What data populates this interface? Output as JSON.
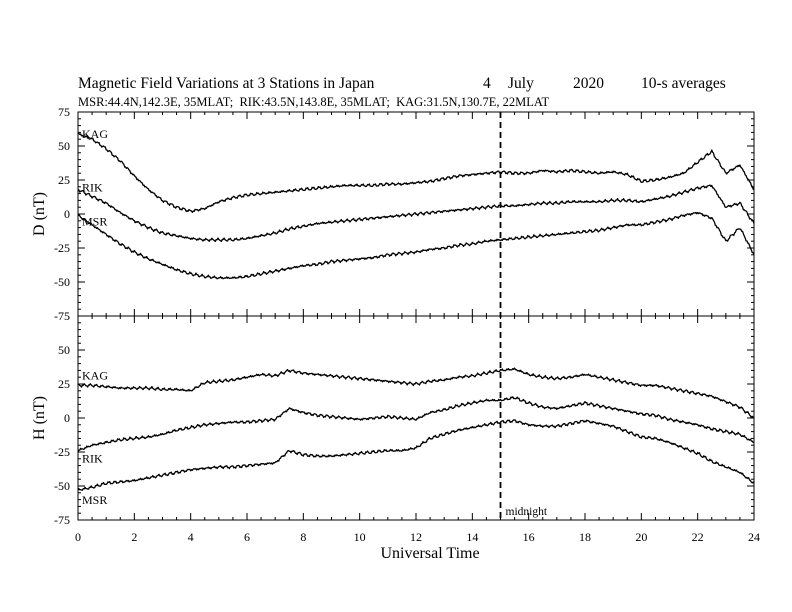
{
  "chart_data": {
    "type": "line",
    "title": "Magnetic Field Variations at 3 Stations in Japan",
    "date_day": "4",
    "date_month": "July",
    "date_year": "2020",
    "averaging": "10-s averages",
    "stations_info": "MSR:44.4N,142.3E, 35MLAT;  RIK:43.5N,143.8E, 35MLAT;  KAG:31.5N,130.7E, 22MLAT",
    "xlabel": "Universal Time",
    "xlim": [
      0,
      24
    ],
    "x_ticks": [
      "0",
      "2",
      "4",
      "6",
      "8",
      "10",
      "12",
      "14",
      "16",
      "18",
      "20",
      "22",
      "24"
    ],
    "midnight_line": {
      "x": 15,
      "label": "midnight"
    },
    "panels": [
      {
        "ylabel": "D (nT)",
        "ylim": [
          -75,
          75
        ],
        "y_ticks": [
          "75",
          "50",
          "25",
          "0",
          "-25",
          "-50",
          "-75"
        ],
        "series": [
          {
            "name": "KAG",
            "x": [
              0,
              0.5,
              1,
              1.5,
              2,
              2.5,
              3,
              3.5,
              4,
              4.5,
              5,
              5.5,
              6,
              6.5,
              7,
              7.5,
              8,
              8.5,
              9,
              9.5,
              10,
              10.5,
              11,
              11.5,
              12,
              12.5,
              13,
              13.5,
              14,
              14.5,
              15,
              15.5,
              16,
              16.5,
              17,
              17.5,
              18,
              18.5,
              19,
              19.5,
              20,
              20.5,
              21,
              21.5,
              22,
              22.5,
              23,
              23.5,
              24
            ],
            "values": [
              59,
              55,
              48,
              39,
              28,
              18,
              10,
              5,
              2,
              4,
              9,
              12,
              14,
              15,
              16,
              17,
              18,
              19,
              20,
              21,
              21,
              21,
              22,
              22,
              23,
              24,
              26,
              28,
              29,
              30,
              31,
              30,
              30,
              32,
              31,
              32,
              31,
              30,
              31,
              29,
              24,
              25,
              27,
              30,
              38,
              46,
              30,
              36,
              18
            ]
          },
          {
            "name": "RIK",
            "x": [
              0,
              0.5,
              1,
              1.5,
              2,
              2.5,
              3,
              3.5,
              4,
              4.5,
              5,
              5.5,
              6,
              6.5,
              7,
              7.5,
              8,
              8.5,
              9,
              9.5,
              10,
              10.5,
              11,
              11.5,
              12,
              12.5,
              13,
              13.5,
              14,
              14.5,
              15,
              15.5,
              16,
              16.5,
              17,
              17.5,
              18,
              18.5,
              19,
              19.5,
              20,
              20.5,
              21,
              21.5,
              22,
              22.5,
              23,
              23.5,
              24
            ],
            "values": [
              18,
              13,
              8,
              1,
              -5,
              -10,
              -14,
              -16,
              -18,
              -19,
              -19,
              -19,
              -18,
              -16,
              -14,
              -11,
              -9,
              -7,
              -6,
              -5,
              -4,
              -3,
              -2,
              -1,
              0,
              1,
              2,
              3,
              4,
              5,
              6,
              6,
              7,
              8,
              8,
              9,
              9,
              9,
              10,
              10,
              9,
              11,
              13,
              16,
              19,
              21,
              5,
              8,
              -7
            ]
          },
          {
            "name": "MSR",
            "x": [
              0,
              0.5,
              1,
              1.5,
              2,
              2.5,
              3,
              3.5,
              4,
              4.5,
              5,
              5.5,
              6,
              6.5,
              7,
              7.5,
              8,
              8.5,
              9,
              9.5,
              10,
              10.5,
              11,
              11.5,
              12,
              12.5,
              13,
              13.5,
              14,
              14.5,
              15,
              15.5,
              16,
              16.5,
              17,
              17.5,
              18,
              18.5,
              19,
              19.5,
              20,
              20.5,
              21,
              21.5,
              22,
              22.5,
              23,
              23.5,
              24
            ],
            "values": [
              -1,
              -8,
              -15,
              -22,
              -28,
              -33,
              -37,
              -41,
              -44,
              -46,
              -47,
              -47,
              -46,
              -44,
              -42,
              -40,
              -38,
              -37,
              -35,
              -34,
              -33,
              -32,
              -30,
              -29,
              -28,
              -26,
              -25,
              -23,
              -22,
              -20,
              -19,
              -18,
              -17,
              -16,
              -15,
              -14,
              -13,
              -12,
              -10,
              -8,
              -8,
              -6,
              -4,
              -1,
              1,
              -3,
              -20,
              -10,
              -30
            ]
          }
        ]
      },
      {
        "ylabel": "H (nT)",
        "ylim": [
          -75,
          75
        ],
        "y_ticks": [
          "75",
          "50",
          "25",
          "0",
          "-25",
          "-50",
          "-75"
        ],
        "series": [
          {
            "name": "KAG",
            "x": [
              0,
              0.5,
              1,
              1.5,
              2,
              2.5,
              3,
              3.5,
              4,
              4.5,
              5,
              5.5,
              6,
              6.5,
              7,
              7.5,
              8,
              8.5,
              9,
              9.5,
              10,
              10.5,
              11,
              11.5,
              12,
              12.5,
              13,
              13.5,
              14,
              14.5,
              15,
              15.5,
              16,
              16.5,
              17,
              17.5,
              18,
              18.5,
              19,
              19.5,
              20,
              20.5,
              21,
              21.5,
              22,
              22.5,
              23,
              23.5,
              24
            ],
            "values": [
              24,
              24,
              23,
              22,
              22,
              22,
              21,
              21,
              20,
              26,
              27,
              28,
              30,
              32,
              31,
              35,
              33,
              32,
              31,
              30,
              29,
              28,
              27,
              26,
              25,
              27,
              28,
              30,
              31,
              33,
              35,
              36,
              32,
              30,
              29,
              30,
              32,
              30,
              28,
              26,
              24,
              24,
              22,
              20,
              18,
              16,
              12,
              8,
              0
            ]
          },
          {
            "name": "RIK",
            "x": [
              0,
              0.5,
              1,
              1.5,
              2,
              2.5,
              3,
              3.5,
              4,
              4.5,
              5,
              5.5,
              6,
              6.5,
              7,
              7.5,
              8,
              8.5,
              9,
              9.5,
              10,
              10.5,
              11,
              11.5,
              12,
              12.5,
              13,
              13.5,
              14,
              14.5,
              15,
              15.5,
              16,
              16.5,
              17,
              17.5,
              18,
              18.5,
              19,
              19.5,
              20,
              20.5,
              21,
              21.5,
              22,
              22.5,
              23,
              23.5,
              24
            ],
            "values": [
              -24,
              -20,
              -18,
              -16,
              -15,
              -14,
              -12,
              -9,
              -7,
              -5,
              -4,
              -3,
              -3,
              -2,
              -1,
              7,
              4,
              2,
              1,
              0,
              -1,
              0,
              1,
              0,
              -1,
              4,
              6,
              9,
              11,
              13,
              13,
              15,
              11,
              8,
              7,
              9,
              11,
              9,
              7,
              5,
              3,
              2,
              -1,
              -3,
              -5,
              -8,
              -10,
              -12,
              -18
            ]
          },
          {
            "name": "MSR",
            "x": [
              0,
              0.5,
              1,
              1.5,
              2,
              2.5,
              3,
              3.5,
              4,
              4.5,
              5,
              5.5,
              6,
              6.5,
              7,
              7.5,
              8,
              8.5,
              9,
              9.5,
              10,
              10.5,
              11,
              11.5,
              12,
              12.5,
              13,
              13.5,
              14,
              14.5,
              15,
              15.5,
              16,
              16.5,
              17,
              17.5,
              18,
              18.5,
              19,
              19.5,
              20,
              20.5,
              21,
              21.5,
              22,
              22.5,
              23,
              23.5,
              24
            ],
            "values": [
              -53,
              -51,
              -48,
              -47,
              -46,
              -44,
              -42,
              -40,
              -38,
              -37,
              -36,
              -36,
              -35,
              -34,
              -33,
              -24,
              -27,
              -28,
              -28,
              -27,
              -26,
              -25,
              -24,
              -24,
              -22,
              -15,
              -12,
              -9,
              -7,
              -5,
              -3,
              -2,
              -5,
              -6,
              -6,
              -4,
              -2,
              -4,
              -6,
              -10,
              -14,
              -15,
              -18,
              -22,
              -26,
              -32,
              -36,
              -40,
              -48
            ]
          }
        ]
      }
    ]
  }
}
